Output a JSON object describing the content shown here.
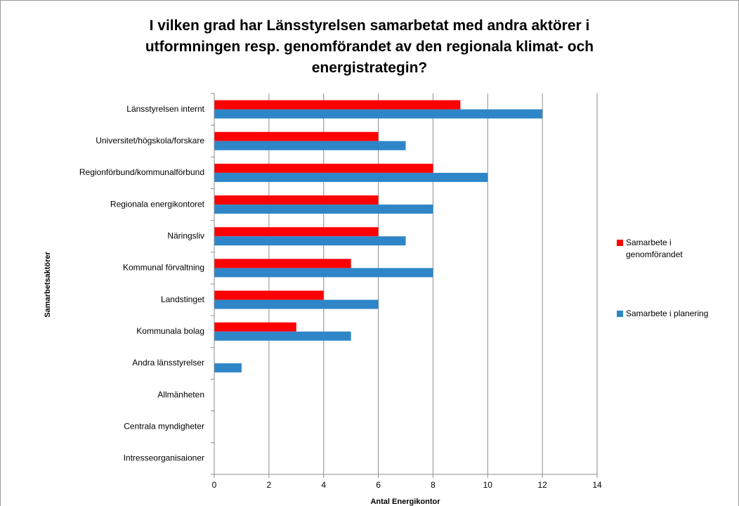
{
  "chart_data": {
    "type": "bar",
    "orientation": "horizontal",
    "title": "I vilken grad har Länsstyrelsen samarbetat med andra aktörer i utformningen resp. genomförandet av den regionala klimat- och energistrategin?",
    "xlabel": "Antal Energikontor",
    "ylabel": "Samarbetsaktörer",
    "categories": [
      "Länsstyrelsen internt",
      "Universitet/högskola/forskare",
      "Regionförbund/kommunalförbund",
      "Regionala energikontoret",
      "Näringsliv",
      "Kommunal förvaltning",
      "Landstinget",
      "Kommunala bolag",
      "Andra länsstyrelser",
      "Allmänheten",
      "Centrala myndigheter",
      "Intresseorganisaioner"
    ],
    "series": [
      {
        "name": "Samarbete i genomförandet",
        "color": "#ff0000",
        "values": [
          9,
          6,
          8,
          6,
          6,
          5,
          4,
          3,
          0,
          0,
          0,
          0
        ]
      },
      {
        "name": "Samarbete i planering",
        "color": "#2e86c8",
        "values": [
          12,
          7,
          10,
          8,
          7,
          8,
          6,
          5,
          1,
          0,
          0,
          0
        ]
      }
    ],
    "xlim": [
      0,
      14
    ],
    "xticks": [
      0,
      2,
      4,
      6,
      8,
      10,
      12,
      14
    ],
    "grid": true,
    "legend": "right"
  }
}
